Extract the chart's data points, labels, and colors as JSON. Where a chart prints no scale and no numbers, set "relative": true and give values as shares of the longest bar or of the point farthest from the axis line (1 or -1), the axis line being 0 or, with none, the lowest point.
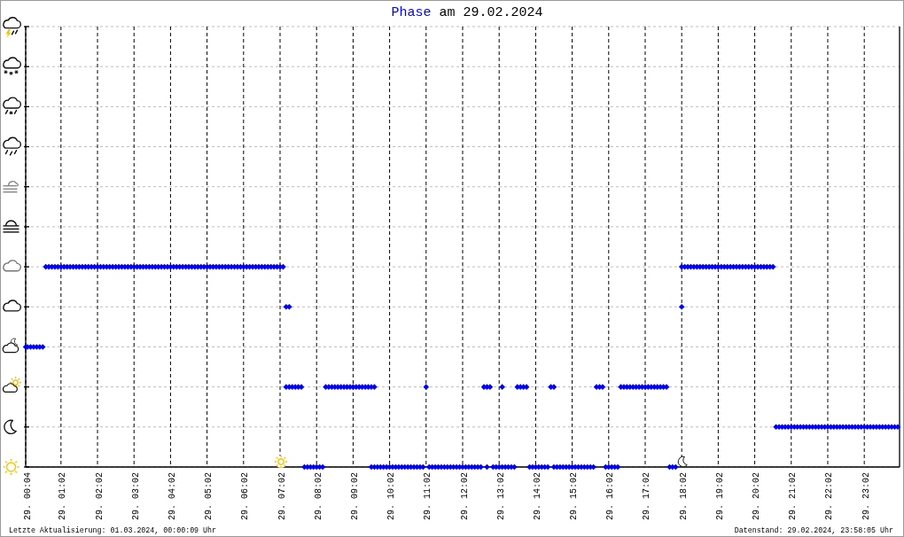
{
  "chart_data": {
    "type": "scatter",
    "title": "Phase am 29.02.2024",
    "marker": "diamond",
    "color": "#0000ff",
    "grid": true,
    "relative": true,
    "xlim": [
      "2024-02-29T00:04",
      "2024-03-01T00:00"
    ],
    "xticks": [
      {
        "value": "2024-02-29T00:04",
        "label": "29. 00:04"
      },
      {
        "value": "2024-02-29T01:02",
        "label": "29. 01:02"
      },
      {
        "value": "2024-02-29T02:02",
        "label": "29. 02:02"
      },
      {
        "value": "2024-02-29T03:02",
        "label": "29. 03:02"
      },
      {
        "value": "2024-02-29T04:02",
        "label": "29. 04:02"
      },
      {
        "value": "2024-02-29T05:02",
        "label": "29. 05:02"
      },
      {
        "value": "2024-02-29T06:02",
        "label": "29. 06:02"
      },
      {
        "value": "2024-02-29T07:02",
        "label": "29. 07:02"
      },
      {
        "value": "2024-02-29T08:02",
        "label": "29. 08:02"
      },
      {
        "value": "2024-02-29T09:02",
        "label": "29. 09:02"
      },
      {
        "value": "2024-02-29T10:02",
        "label": "29. 10:02"
      },
      {
        "value": "2024-02-29T11:02",
        "label": "29. 11:02"
      },
      {
        "value": "2024-02-29T12:02",
        "label": "29. 12:02"
      },
      {
        "value": "2024-02-29T13:02",
        "label": "29. 13:02"
      },
      {
        "value": "2024-02-29T14:02",
        "label": "29. 14:02"
      },
      {
        "value": "2024-02-29T15:02",
        "label": "29. 15:02"
      },
      {
        "value": "2024-02-29T16:02",
        "label": "29. 16:02"
      },
      {
        "value": "2024-02-29T17:02",
        "label": "29. 17:02"
      },
      {
        "value": "2024-02-29T18:02",
        "label": "29. 18:02"
      },
      {
        "value": "2024-02-29T19:02",
        "label": "29. 19:02"
      },
      {
        "value": "2024-02-29T20:02",
        "label": "29. 20:02"
      },
      {
        "value": "2024-02-29T21:02",
        "label": "29. 21:02"
      },
      {
        "value": "2024-02-29T22:02",
        "label": "29. 22:02"
      },
      {
        "value": "2024-02-29T23:02",
        "label": "29. 23:02"
      }
    ],
    "x": [
      "2024-02-29T00:04",
      "2024-02-29T00:07",
      "2024-02-29T00:12",
      "2024-02-29T00:17",
      "2024-02-29T00:22",
      "2024-02-29T00:27",
      "2024-02-29T00:32",
      "2024-02-29T00:37",
      "2024-02-29T00:42",
      "2024-02-29T00:47",
      "2024-02-29T00:52",
      "2024-02-29T00:57",
      "2024-02-29T01:02",
      "2024-02-29T01:07",
      "2024-02-29T01:12",
      "2024-02-29T01:17",
      "2024-02-29T01:22",
      "2024-02-29T01:27",
      "2024-02-29T01:32",
      "2024-02-29T01:37",
      "2024-02-29T01:42",
      "2024-02-29T01:47",
      "2024-02-29T01:52",
      "2024-02-29T01:57",
      "2024-02-29T02:02",
      "2024-02-29T02:07",
      "2024-02-29T02:12",
      "2024-02-29T02:17",
      "2024-02-29T02:22",
      "2024-02-29T02:27",
      "2024-02-29T02:32",
      "2024-02-29T02:37",
      "2024-02-29T02:42",
      "2024-02-29T02:47",
      "2024-02-29T02:52",
      "2024-02-29T02:57",
      "2024-02-29T03:02",
      "2024-02-29T03:07",
      "2024-02-29T03:12",
      "2024-02-29T03:17",
      "2024-02-29T03:22",
      "2024-02-29T03:27",
      "2024-02-29T03:32",
      "2024-02-29T03:37",
      "2024-02-29T03:42",
      "2024-02-29T03:47",
      "2024-02-29T03:52",
      "2024-02-29T03:57",
      "2024-02-29T04:02",
      "2024-02-29T04:07",
      "2024-02-29T04:12",
      "2024-02-29T04:17",
      "2024-02-29T04:22",
      "2024-02-29T04:27",
      "2024-02-29T04:32",
      "2024-02-29T04:37",
      "2024-02-29T04:42",
      "2024-02-29T04:47",
      "2024-02-29T04:52",
      "2024-02-29T04:57",
      "2024-02-29T05:02",
      "2024-02-29T05:07",
      "2024-02-29T05:12",
      "2024-02-29T05:17",
      "2024-02-29T05:22",
      "2024-02-29T05:27",
      "2024-02-29T05:32",
      "2024-02-29T05:37",
      "2024-02-29T05:42",
      "2024-02-29T05:47",
      "2024-02-29T05:52",
      "2024-02-29T05:57",
      "2024-02-29T06:02",
      "2024-02-29T06:07",
      "2024-02-29T06:12",
      "2024-02-29T06:17",
      "2024-02-29T06:22",
      "2024-02-29T06:27",
      "2024-02-29T06:32",
      "2024-02-29T06:37",
      "2024-02-29T06:42",
      "2024-02-29T06:47",
      "2024-02-29T06:52",
      "2024-02-29T06:57",
      "2024-02-29T07:02",
      "2024-02-29T07:07",
      "2024-02-29T07:12",
      "2024-02-29T07:17",
      "2024-02-29T07:12",
      "2024-02-29T07:17",
      "2024-02-29T07:22",
      "2024-02-29T07:27",
      "2024-02-29T07:32",
      "2024-02-29T07:37",
      "2024-02-29T07:42",
      "2024-02-29T07:47",
      "2024-02-29T07:52",
      "2024-02-29T07:57",
      "2024-02-29T08:02",
      "2024-02-29T08:07",
      "2024-02-29T08:12",
      "2024-02-29T08:17",
      "2024-02-29T08:22",
      "2024-02-29T08:27",
      "2024-02-29T08:32",
      "2024-02-29T08:37",
      "2024-02-29T08:42",
      "2024-02-29T08:47",
      "2024-02-29T08:52",
      "2024-02-29T08:57",
      "2024-02-29T09:02",
      "2024-02-29T09:07",
      "2024-02-29T09:12",
      "2024-02-29T09:17",
      "2024-02-29T09:22",
      "2024-02-29T09:27",
      "2024-02-29T09:32",
      "2024-02-29T09:37",
      "2024-02-29T09:32",
      "2024-02-29T09:37",
      "2024-02-29T09:42",
      "2024-02-29T09:47",
      "2024-02-29T09:52",
      "2024-02-29T09:57",
      "2024-02-29T10:02",
      "2024-02-29T10:07",
      "2024-02-29T10:12",
      "2024-02-29T10:17",
      "2024-02-29T10:22",
      "2024-02-29T10:27",
      "2024-02-29T10:32",
      "2024-02-29T10:37",
      "2024-02-29T10:42",
      "2024-02-29T10:47",
      "2024-02-29T10:52",
      "2024-02-29T10:57",
      "2024-02-29T11:02",
      "2024-02-29T11:07",
      "2024-02-29T11:12",
      "2024-02-29T11:17",
      "2024-02-29T11:22",
      "2024-02-29T11:27",
      "2024-02-29T11:32",
      "2024-02-29T11:37",
      "2024-02-29T11:42",
      "2024-02-29T11:47",
      "2024-02-29T11:52",
      "2024-02-29T11:57",
      "2024-02-29T12:02",
      "2024-02-29T12:07",
      "2024-02-29T12:12",
      "2024-02-29T12:17",
      "2024-02-29T12:22",
      "2024-02-29T12:27",
      "2024-02-29T12:32",
      "2024-02-29T12:37",
      "2024-02-29T12:42",
      "2024-02-29T12:47",
      "2024-02-29T12:42",
      "2024-02-29T12:52",
      "2024-02-29T12:57",
      "2024-02-29T13:02",
      "2024-02-29T13:07",
      "2024-02-29T13:12",
      "2024-02-29T13:17",
      "2024-02-29T13:22",
      "2024-02-29T13:27",
      "2024-02-29T13:07",
      "2024-02-29T13:32",
      "2024-02-29T13:37",
      "2024-02-29T13:42",
      "2024-02-29T13:47",
      "2024-02-29T13:52",
      "2024-02-29T13:57",
      "2024-02-29T14:02",
      "2024-02-29T14:07",
      "2024-02-29T14:12",
      "2024-02-29T14:17",
      "2024-02-29T14:22",
      "2024-02-29T14:27",
      "2024-02-29T14:32",
      "2024-02-29T14:32",
      "2024-02-29T14:37",
      "2024-02-29T14:42",
      "2024-02-29T14:47",
      "2024-02-29T14:52",
      "2024-02-29T14:57",
      "2024-02-29T15:02",
      "2024-02-29T15:07",
      "2024-02-29T15:12",
      "2024-02-29T15:17",
      "2024-02-29T15:22",
      "2024-02-29T15:27",
      "2024-02-29T15:32",
      "2024-02-29T15:37",
      "2024-02-29T15:42",
      "2024-02-29T15:47",
      "2024-02-29T15:52",
      "2024-02-29T15:57",
      "2024-02-29T16:02",
      "2024-02-29T16:07",
      "2024-02-29T16:12",
      "2024-02-29T16:17",
      "2024-02-29T16:22",
      "2024-02-29T16:27",
      "2024-02-29T16:32",
      "2024-02-29T16:37",
      "2024-02-29T16:42",
      "2024-02-29T16:47",
      "2024-02-29T16:52",
      "2024-02-29T16:57",
      "2024-02-29T17:02",
      "2024-02-29T17:07",
      "2024-02-29T17:12",
      "2024-02-29T17:17",
      "2024-02-29T17:22",
      "2024-02-29T17:27",
      "2024-02-29T17:32",
      "2024-02-29T17:37",
      "2024-02-29T17:42",
      "2024-02-29T17:47",
      "2024-02-29T17:52",
      "2024-02-29T18:02",
      "2024-02-29T18:02",
      "2024-02-29T18:07",
      "2024-02-29T18:12",
      "2024-02-29T18:17",
      "2024-02-29T18:22",
      "2024-02-29T18:27",
      "2024-02-29T18:32",
      "2024-02-29T18:37",
      "2024-02-29T18:42",
      "2024-02-29T18:47",
      "2024-02-29T18:52",
      "2024-02-29T18:57",
      "2024-02-29T19:02",
      "2024-02-29T19:07",
      "2024-02-29T19:12",
      "2024-02-29T19:17",
      "2024-02-29T19:22",
      "2024-02-29T19:27",
      "2024-02-29T19:32",
      "2024-02-29T19:37",
      "2024-02-29T19:42",
      "2024-02-29T19:47",
      "2024-02-29T19:52",
      "2024-02-29T19:57",
      "2024-02-29T20:02",
      "2024-02-29T20:07",
      "2024-02-29T20:12",
      "2024-02-29T20:17",
      "2024-02-29T20:22",
      "2024-02-29T20:27",
      "2024-02-29T20:32",
      "2024-02-29T20:37",
      "2024-02-29T20:42",
      "2024-02-29T20:47",
      "2024-02-29T20:52",
      "2024-02-29T20:57",
      "2024-02-29T21:02",
      "2024-02-29T21:07",
      "2024-02-29T21:12",
      "2024-02-29T21:17",
      "2024-02-29T21:22",
      "2024-02-29T21:27",
      "2024-02-29T21:32",
      "2024-02-29T21:37",
      "2024-02-29T21:42",
      "2024-02-29T21:47",
      "2024-02-29T21:52",
      "2024-02-29T21:57",
      "2024-02-29T22:02",
      "2024-02-29T22:07",
      "2024-02-29T22:12",
      "2024-02-29T22:17",
      "2024-02-29T22:22",
      "2024-02-29T22:27",
      "2024-02-29T22:32",
      "2024-02-29T22:37",
      "2024-02-29T22:42",
      "2024-02-29T22:47",
      "2024-02-29T22:52",
      "2024-02-29T22:57",
      "2024-02-29T23:02",
      "2024-02-29T23:07",
      "2024-02-29T23:12",
      "2024-02-29T23:17",
      "2024-02-29T23:22",
      "2024-02-29T23:27",
      "2024-02-29T23:32",
      "2024-02-29T23:37",
      "2024-02-29T23:42",
      "2024-02-29T23:47",
      "2024-02-29T23:52",
      "2024-02-29T23:57"
    ],
    "values": [
      0.6,
      0.6,
      0.6,
      0.6,
      0.6,
      0.6,
      0.6,
      1,
      1,
      1,
      1,
      1,
      1,
      1,
      1,
      1,
      1,
      1,
      1,
      1,
      1,
      1,
      1,
      1,
      1,
      1,
      1,
      1,
      1,
      1,
      1,
      1,
      1,
      1,
      1,
      1,
      1,
      1,
      1,
      1,
      1,
      1,
      1,
      1,
      1,
      1,
      1,
      1,
      1,
      1,
      1,
      1,
      1,
      1,
      1,
      1,
      1,
      1,
      1,
      1,
      1,
      1,
      1,
      1,
      1,
      1,
      1,
      1,
      1,
      1,
      1,
      1,
      1,
      1,
      1,
      1,
      1,
      1,
      1,
      1,
      1,
      1,
      1,
      1,
      1,
      1,
      0.8,
      0.8,
      0.4,
      0.4,
      0.4,
      0.4,
      0.4,
      0.4,
      0,
      0,
      0,
      0,
      0,
      0,
      0,
      0.4,
      0.4,
      0.4,
      0.4,
      0.4,
      0.4,
      0.4,
      0.4,
      0.4,
      0.4,
      0.4,
      0.4,
      0.4,
      0.4,
      0.4,
      0.4,
      0.4,
      0,
      0,
      0,
      0,
      0,
      0,
      0,
      0,
      0,
      0,
      0,
      0,
      0,
      0,
      0,
      0,
      0,
      0,
      0.4,
      0,
      0,
      0,
      0,
      0,
      0,
      0,
      0,
      0,
      0,
      0,
      0,
      0,
      0,
      0,
      0,
      0,
      0,
      0.4,
      0.4,
      0.4,
      0,
      0,
      0,
      0,
      0,
      0,
      0,
      0,
      0,
      0.4,
      0.4,
      0.4,
      0.4,
      0.4,
      0,
      0,
      0,
      0,
      0,
      0,
      0,
      0.4,
      0.4,
      0,
      0,
      0,
      0,
      0,
      0,
      0,
      0,
      0,
      0,
      0,
      0,
      0,
      0,
      0.4,
      0.4,
      0.4,
      0,
      0,
      0,
      0,
      0,
      0.4,
      0.4,
      0.4,
      0.4,
      0.4,
      0.4,
      0.4,
      0.4,
      0.4,
      0.4,
      0.4,
      0.4,
      0.4,
      0.4,
      0.4,
      0.4,
      0,
      0,
      0,
      0.8,
      1,
      1,
      1,
      1,
      1,
      1,
      1,
      1,
      1,
      1,
      1,
      1,
      1,
      1,
      1,
      1,
      1,
      1,
      1,
      1,
      1,
      1,
      1,
      1,
      1,
      1,
      1,
      1,
      1,
      1,
      1,
      0.2,
      0.2,
      0.2,
      0.2,
      0.2,
      0.2,
      0.2,
      0.2,
      0.2,
      0.2,
      0.2,
      0.2,
      0.2,
      0.2,
      0.2,
      0.2,
      0.2,
      0.2,
      0.2,
      0.2,
      0.2,
      0.2,
      0.2,
      0.2,
      0.2,
      0.2,
      0.2,
      0.2,
      0.2,
      0.2,
      0.2,
      0.2,
      0.2,
      0.2,
      0.2,
      0.2,
      0.2,
      0.2,
      0.2,
      0.2,
      0.2
    ],
    "annotations": [
      "Letzte Aktualisierung: 01.03.2024, 00:00:09 Uhr",
      "Datenstand: 29.02.2024, 23:58:05 Uhr"
    ]
  }
}
